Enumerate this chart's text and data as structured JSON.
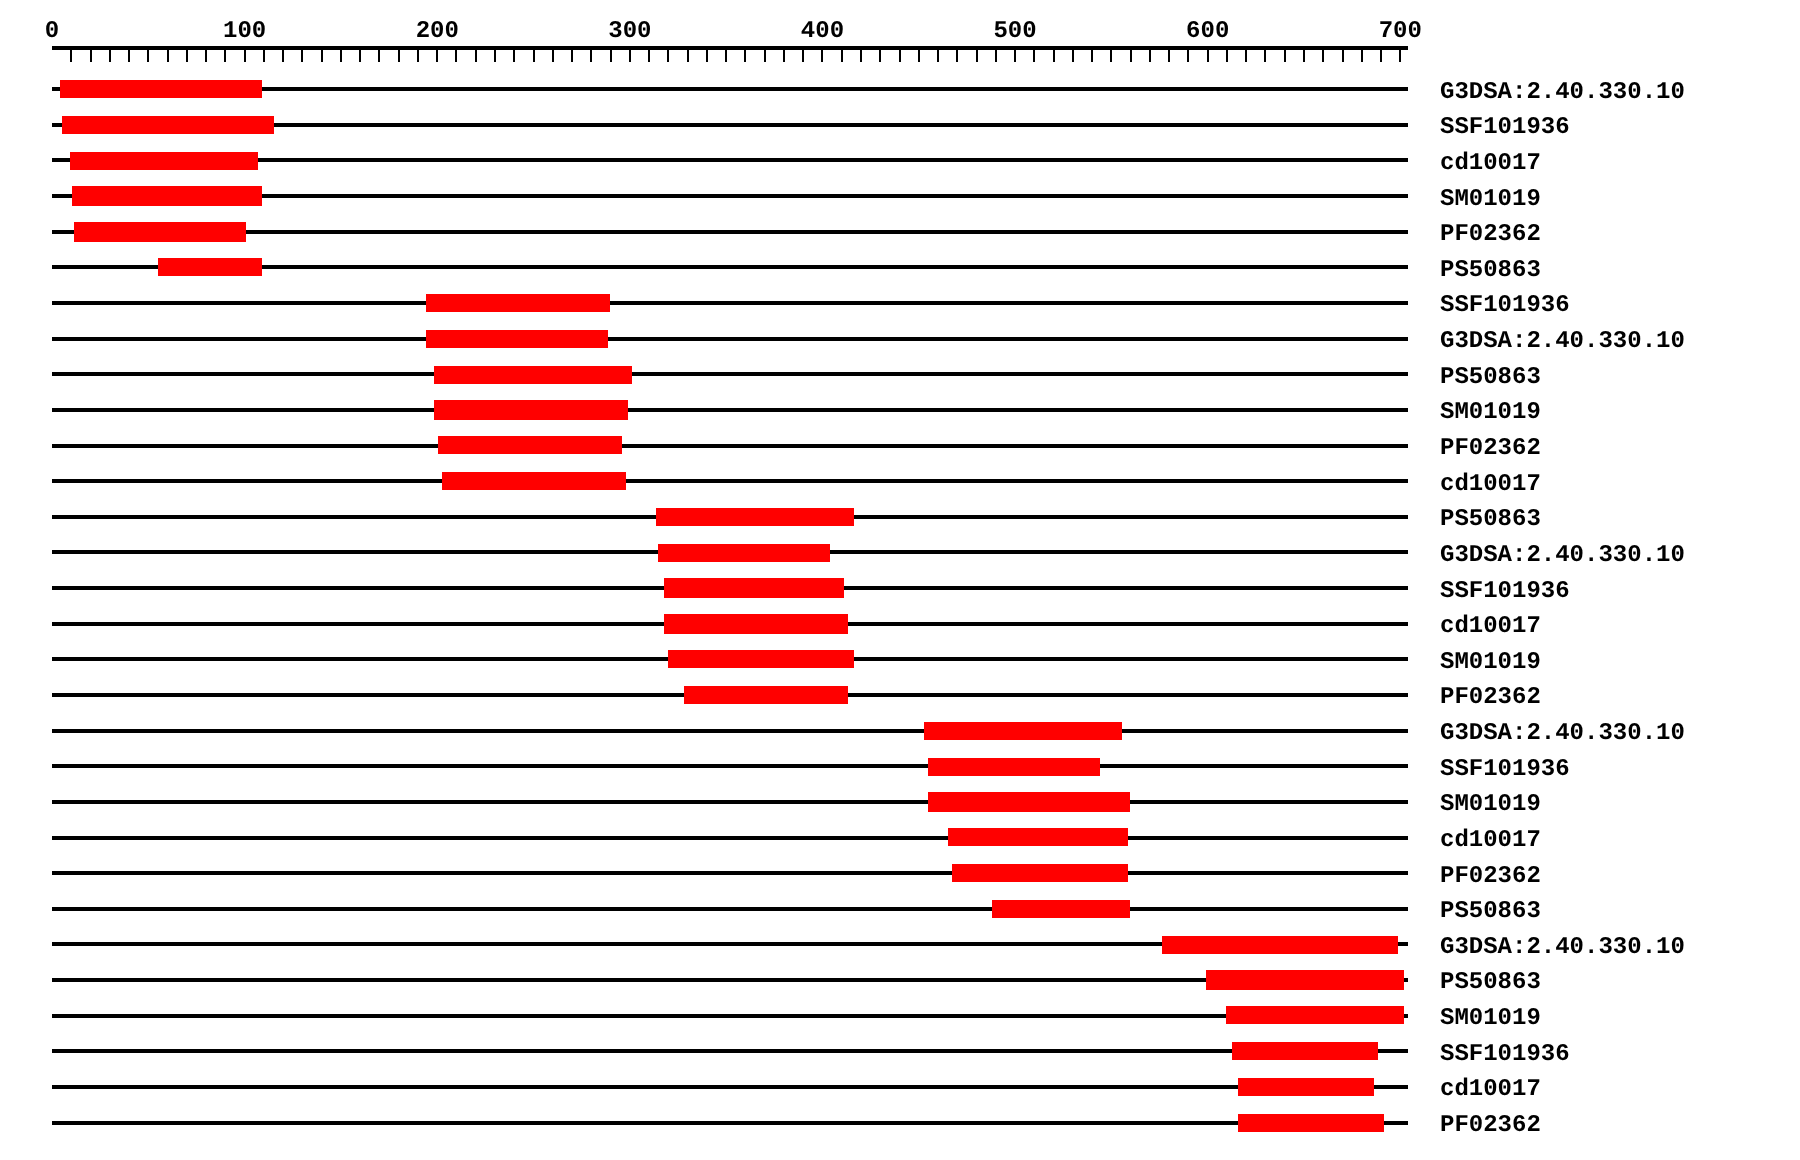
{
  "chart_data": {
    "type": "bar",
    "orientation": "horizontal",
    "color": "#ff0000",
    "grid": "y",
    "categories": [
      "G3DSA:2.40.330.10",
      "SSF101936",
      "cd10017",
      "SM01019",
      "PF02362",
      "PS50863",
      "SSF101936",
      "G3DSA:2.40.330.10",
      "PS50863",
      "SM01019",
      "PF02362",
      "cd10017",
      "PS50863",
      "G3DSA:2.40.330.10",
      "SSF101936",
      "cd10017",
      "SM01019",
      "PF02362",
      "G3DSA:2.40.330.10",
      "SSF101936",
      "SM01019",
      "cd10017",
      "PF02362",
      "PS50863",
      "G3DSA:2.40.330.10",
      "PS50863",
      "SM01019",
      "SSF101936",
      "cd10017",
      "PF02362"
    ],
    "base": [
      4,
      5,
      9,
      10,
      11,
      55,
      194,
      194,
      198,
      198,
      200,
      202,
      314,
      315,
      318,
      318,
      320,
      328,
      453,
      455,
      455,
      465,
      467,
      488,
      576,
      599,
      609,
      613,
      616,
      616
    ],
    "values": [
      105,
      110,
      98,
      99,
      90,
      54,
      96,
      95,
      103,
      101,
      96,
      96,
      102,
      89,
      93,
      95,
      96,
      85,
      103,
      89,
      105,
      94,
      92,
      72,
      123,
      103,
      93,
      75,
      70,
      76
    ],
    "xlim": [
      0,
      704
    ],
    "xticks": [
      0,
      {
        "value": 10,
        "label": null
      },
      {
        "value": 20,
        "label": null
      },
      {
        "value": 30,
        "label": null
      },
      {
        "value": 40,
        "label": null
      },
      {
        "value": 50,
        "label": null
      },
      {
        "value": 60,
        "label": null
      },
      {
        "value": 70,
        "label": null
      },
      {
        "value": 80,
        "label": null
      },
      {
        "value": 90,
        "label": null
      },
      100,
      {
        "value": 110,
        "label": null
      },
      {
        "value": 120,
        "label": null
      },
      {
        "value": 130,
        "label": null
      },
      {
        "value": 140,
        "label": null
      },
      {
        "value": 150,
        "label": null
      },
      {
        "value": 160,
        "label": null
      },
      {
        "value": 170,
        "label": null
      },
      {
        "value": 180,
        "label": null
      },
      {
        "value": 190,
        "label": null
      },
      200,
      {
        "value": 210,
        "label": null
      },
      {
        "value": 220,
        "label": null
      },
      {
        "value": 230,
        "label": null
      },
      {
        "value": 240,
        "label": null
      },
      {
        "value": 250,
        "label": null
      },
      {
        "value": 260,
        "label": null
      },
      {
        "value": 270,
        "label": null
      },
      {
        "value": 280,
        "label": null
      },
      {
        "value": 290,
        "label": null
      },
      300,
      {
        "value": 310,
        "label": null
      },
      {
        "value": 320,
        "label": null
      },
      {
        "value": 330,
        "label": null
      },
      {
        "value": 340,
        "label": null
      },
      {
        "value": 350,
        "label": null
      },
      {
        "value": 360,
        "label": null
      },
      {
        "value": 370,
        "label": null
      },
      {
        "value": 380,
        "label": null
      },
      {
        "value": 390,
        "label": null
      },
      400,
      {
        "value": 410,
        "label": null
      },
      {
        "value": 420,
        "label": null
      },
      {
        "value": 430,
        "label": null
      },
      {
        "value": 440,
        "label": null
      },
      {
        "value": 450,
        "label": null
      },
      {
        "value": 460,
        "label": null
      },
      {
        "value": 470,
        "label": null
      },
      {
        "value": 480,
        "label": null
      },
      {
        "value": 490,
        "label": null
      },
      500,
      {
        "value": 510,
        "label": null
      },
      {
        "value": 520,
        "label": null
      },
      {
        "value": 530,
        "label": null
      },
      {
        "value": 540,
        "label": null
      },
      {
        "value": 550,
        "label": null
      },
      {
        "value": 560,
        "label": null
      },
      {
        "value": 570,
        "label": null
      },
      {
        "value": 580,
        "label": null
      },
      {
        "value": 590,
        "label": null
      },
      600,
      {
        "value": 610,
        "label": null
      },
      {
        "value": 620,
        "label": null
      },
      {
        "value": 630,
        "label": null
      },
      {
        "value": 640,
        "label": null
      },
      {
        "value": 650,
        "label": null
      },
      {
        "value": 660,
        "label": null
      },
      {
        "value": 670,
        "label": null
      },
      {
        "value": 680,
        "label": null
      },
      {
        "value": 690,
        "label": null
      },
      700
    ]
  }
}
